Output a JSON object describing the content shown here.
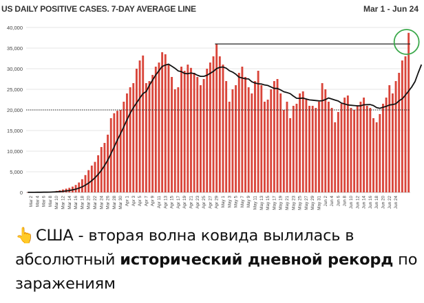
{
  "chart_data": {
    "type": "bar",
    "title": "US DAILY POSITIVE CASES. 7-DAY AVERAGE LINE",
    "date_range": "Mar 1 - Jun 24",
    "ylim": [
      0,
      40000
    ],
    "yticks": [
      0,
      5000,
      10000,
      15000,
      20000,
      25000,
      30000,
      35000,
      40000
    ],
    "ytick_labels": [
      "0",
      "5,000",
      "10,000",
      "15,000",
      "20,000",
      "25,000",
      "30,000",
      "35,000",
      "40,000"
    ],
    "grid": true,
    "bar_color": "#d9453a",
    "line_color": "#111111",
    "x_labels": [
      "Mar 2",
      "Mar 4",
      "Mar 6",
      "Mar 8",
      "Mar 10",
      "Mar 12",
      "Mar 14",
      "Mar 16",
      "Mar 18",
      "Mar 20",
      "Mar 22",
      "Mar 24",
      "Mar 26",
      "Mar 28",
      "Mar 30",
      "Apr 1",
      "Apr 3",
      "Apr 5",
      "Apr 7",
      "Apr 9",
      "Apr 11",
      "Apr 13",
      "Apr 15",
      "Apr 17",
      "Apr 19",
      "Apr 21",
      "Apr 23",
      "Apr 25",
      "Apr 27",
      "Apr 29",
      "May 1",
      "May 3",
      "May 5",
      "May 7",
      "May 9",
      "May 11",
      "May 13",
      "May 15",
      "May 17",
      "May 19",
      "May 21",
      "May 23",
      "May 25",
      "May 27",
      "May 29",
      "May 31",
      "Jun 2",
      "Jun 4",
      "Jun 6",
      "Jun 8",
      "Jun 10",
      "Jun 12",
      "Jun 14",
      "Jun 16",
      "Jun 18",
      "Jun 20",
      "Jun 22",
      "Jun 24"
    ],
    "values": [
      20,
      25,
      30,
      40,
      60,
      80,
      120,
      180,
      250,
      350,
      500,
      700,
      900,
      1100,
      1400,
      1800,
      2400,
      3200,
      4200,
      5400,
      6500,
      7400,
      9000,
      11000,
      12000,
      14000,
      18000,
      19200,
      19800,
      20000,
      22000,
      24000,
      25500,
      26500,
      30000,
      32000,
      33200,
      26500,
      27000,
      28500,
      30500,
      31500,
      34000,
      33500,
      31000,
      28000,
      25000,
      25500,
      30500,
      29500,
      31000,
      30200,
      29000,
      28000,
      26000,
      27500,
      30000,
      31500,
      33000,
      36000,
      33000,
      31000,
      27000,
      22000,
      25000,
      26000,
      29000,
      30500,
      28000,
      25500,
      24000,
      27000,
      29500,
      26000,
      22000,
      22500,
      25000,
      27000,
      27500,
      24000,
      20000,
      22000,
      18000,
      21000,
      21500,
      24000,
      24500,
      22500,
      21000,
      21000,
      20500,
      22000,
      26500,
      25000,
      22000,
      20500,
      17000,
      19500,
      21500,
      23000,
      23500,
      20500,
      20000,
      21000,
      22000,
      23000,
      21000,
      20500,
      18000,
      17000,
      19000,
      21500,
      23000,
      26000,
      24000,
      27000,
      29000,
      32000,
      33000,
      38700
    ],
    "avg7": [
      20,
      22,
      25,
      29,
      35,
      43,
      54,
      71,
      96,
      132,
      182,
      251,
      342,
      456,
      600,
      786,
      1029,
      1343,
      1743,
      2243,
      2843,
      3543,
      4371,
      5357,
      6514,
      7829,
      9400,
      11057,
      12700,
      14271,
      15900,
      17629,
      19214,
      20557,
      21714,
      22886,
      23957,
      24457,
      25971,
      27257,
      28486,
      29529,
      30543,
      30886,
      31100,
      30600,
      30100,
      29471,
      29286,
      28857,
      28786,
      28943,
      28814,
      28414,
      28143,
      28157,
      28414,
      28886,
      29357,
      30029,
      30329,
      30414,
      30129,
      29514,
      29186,
      28671,
      27957,
      27743,
      27571,
      27514,
      26857,
      26514,
      26357,
      26286,
      26071,
      25929,
      25571,
      25214,
      25214,
      24843,
      24414,
      24214,
      23957,
      23343,
      22829,
      22800,
      22886,
      22643,
      22436,
      22364,
      22279,
      22193,
      22229,
      22514,
      22893,
      22650,
      22400,
      22171,
      21671,
      21450,
      21214,
      21129,
      21071,
      21000,
      21000,
      21250,
      21286,
      21300,
      21071,
      20571,
      20400,
      20657,
      20871,
      21200,
      21300,
      21500,
      22200,
      22700,
      23600,
      24600,
      25600,
      26900,
      29000,
      31000
    ],
    "reference_lines": [
      {
        "name": "previous-peak",
        "value": 36000,
        "style": "solid",
        "start_index": 59
      },
      {
        "name": "20k-level",
        "value": 20000,
        "style": "dotted"
      }
    ],
    "highlight_index": 119,
    "highlight_color": "#3aa84a"
  },
  "caption": {
    "emoji": "👆",
    "part1": "США - вторая волна ковида вылилась в абсолютный ",
    "bold": "исторический дневной рекорд",
    "part2": " по заражениям"
  }
}
